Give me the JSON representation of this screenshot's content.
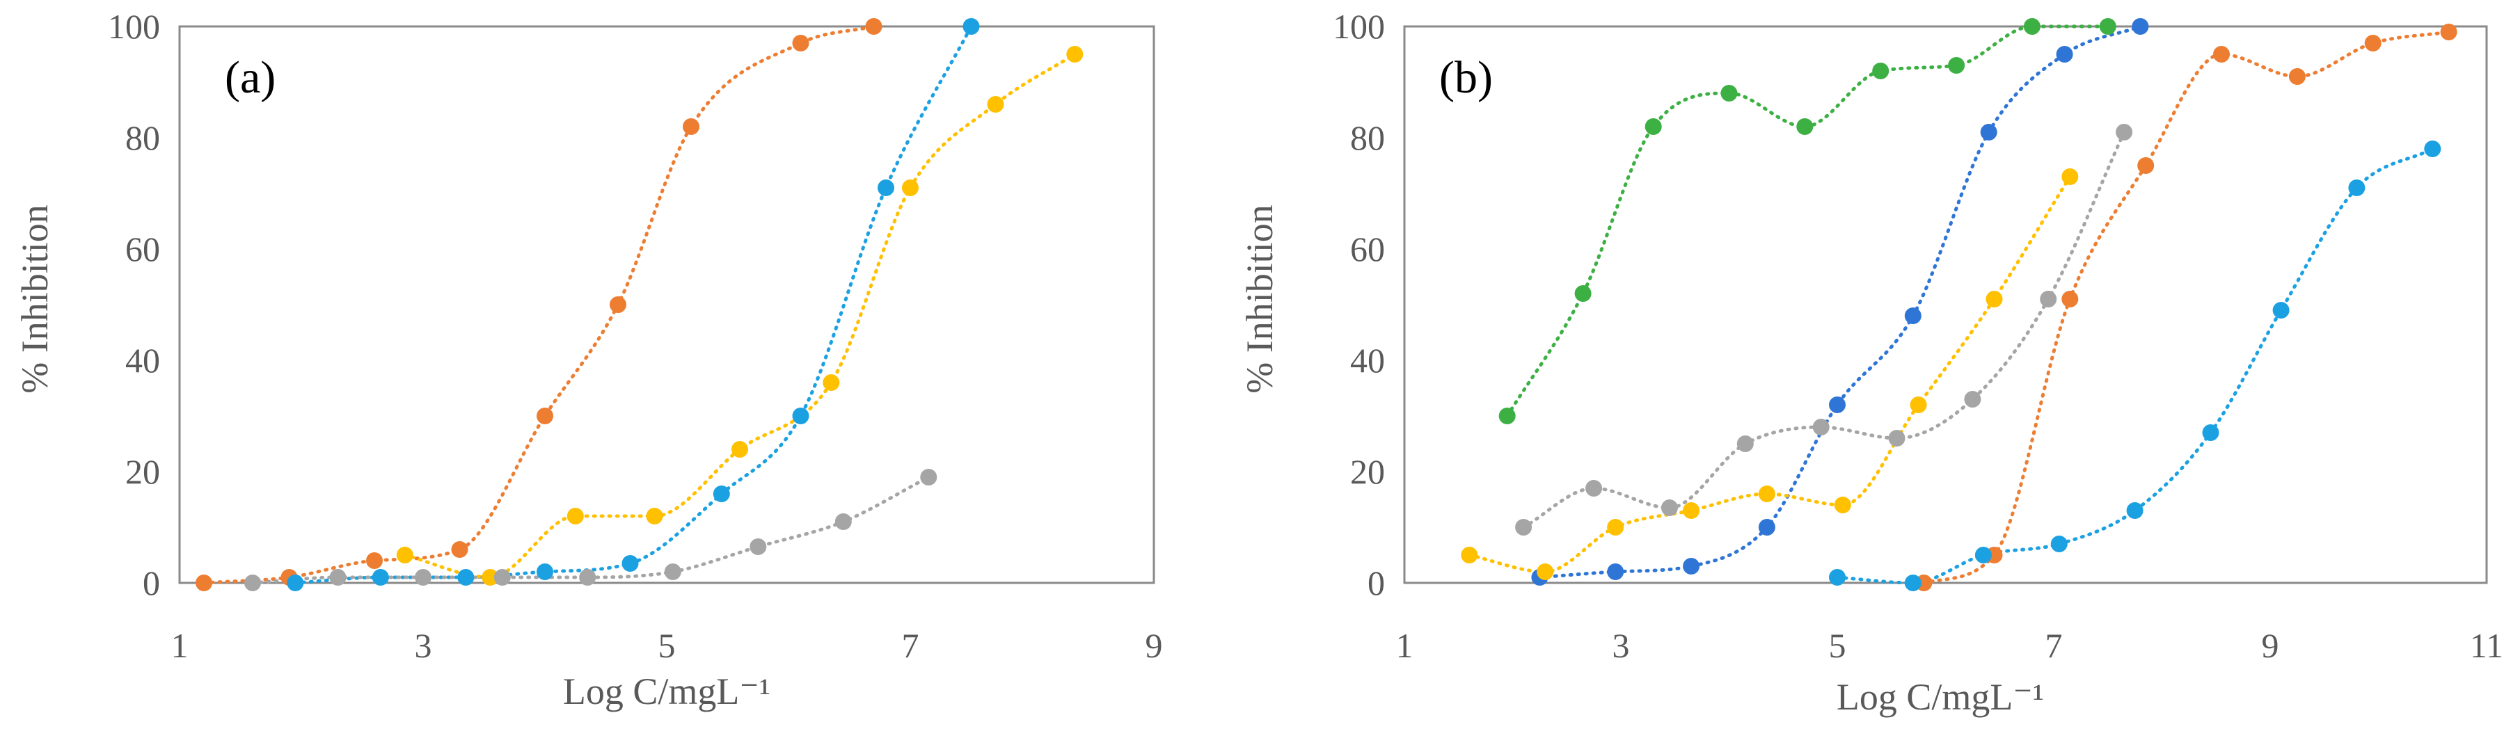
{
  "chart_data": [
    {
      "type": "scatter",
      "panel_label": "(a)",
      "xlabel": "Log C/mgL⁻¹",
      "ylabel": "% Inhibition",
      "xlim": [
        1,
        9
      ],
      "ylim": [
        0,
        100
      ],
      "xticks": [
        1,
        3,
        5,
        7,
        9
      ],
      "yticks": [
        0,
        20,
        40,
        60,
        80,
        100
      ],
      "grid": false,
      "legend": "none",
      "series": [
        {
          "name": "orange",
          "color": "#ED7D31",
          "x": [
            1.2,
            1.9,
            2.6,
            3.3,
            4.0,
            4.6,
            5.2,
            6.1,
            6.7
          ],
          "y": [
            0,
            1,
            4,
            6,
            30,
            50,
            82,
            97,
            100
          ]
        },
        {
          "name": "light-blue",
          "color": "#1BA1E2",
          "x": [
            1.95,
            2.65,
            3.35,
            4.0,
            4.7,
            5.45,
            6.1,
            6.8,
            7.5
          ],
          "y": [
            0,
            1,
            1,
            2,
            3.5,
            16,
            30,
            71,
            100
          ]
        },
        {
          "name": "yellow",
          "color": "#FFC000",
          "x": [
            2.85,
            3.55,
            4.25,
            4.9,
            5.6,
            6.35,
            7.0,
            7.7,
            8.35
          ],
          "y": [
            5,
            1,
            12,
            12,
            24,
            36,
            71,
            86,
            95
          ]
        },
        {
          "name": "gray",
          "color": "#A5A5A5",
          "x": [
            1.6,
            2.3,
            3.0,
            3.65,
            4.35,
            5.05,
            5.75,
            6.45,
            7.15
          ],
          "y": [
            0,
            1,
            1,
            1,
            1,
            2,
            6.5,
            11,
            19
          ]
        }
      ]
    },
    {
      "type": "scatter",
      "panel_label": "(b)",
      "xlabel": "Log C/mgL⁻¹",
      "ylabel": "% Inhibition",
      "xlim": [
        1,
        11
      ],
      "ylim": [
        0,
        100
      ],
      "xticks": [
        1,
        3,
        5,
        7,
        9,
        11
      ],
      "yticks": [
        0,
        20,
        40,
        60,
        80,
        100
      ],
      "grid": false,
      "legend": "none",
      "series": [
        {
          "name": "green",
          "color": "#3CB043",
          "x": [
            1.95,
            2.65,
            3.3,
            4.0,
            4.7,
            5.4,
            6.1,
            6.8,
            7.5
          ],
          "y": [
            30,
            52,
            82,
            88,
            82,
            92,
            93,
            100,
            100
          ]
        },
        {
          "name": "dark-blue",
          "color": "#2E75D6",
          "x": [
            2.25,
            2.95,
            3.65,
            4.35,
            5.0,
            5.7,
            6.4,
            7.1,
            7.8
          ],
          "y": [
            1,
            2,
            3,
            10,
            32,
            48,
            81,
            95,
            100
          ]
        },
        {
          "name": "yellow",
          "color": "#FFC000",
          "x": [
            1.6,
            2.3,
            2.95,
            3.65,
            4.35,
            5.05,
            5.75,
            6.45,
            7.15
          ],
          "y": [
            5,
            2,
            10,
            13,
            16,
            14,
            32,
            51,
            73
          ]
        },
        {
          "name": "gray",
          "color": "#A5A5A5",
          "x": [
            2.1,
            2.75,
            3.45,
            4.15,
            4.85,
            5.55,
            6.25,
            6.95,
            7.65
          ],
          "y": [
            10,
            17,
            13.5,
            25,
            28,
            26,
            33,
            51,
            81
          ]
        },
        {
          "name": "orange",
          "color": "#ED7D31",
          "x": [
            5.8,
            6.45,
            7.15,
            7.85,
            8.55,
            9.25,
            9.95,
            10.65
          ],
          "y": [
            0,
            5,
            51,
            75,
            95,
            91,
            97,
            99
          ]
        },
        {
          "name": "light-blue",
          "color": "#1BA1E2",
          "x": [
            5.0,
            5.7,
            6.35,
            7.05,
            7.75,
            8.45,
            9.1,
            9.8,
            10.5
          ],
          "y": [
            1,
            0,
            5,
            7,
            13,
            27,
            49,
            71,
            78
          ]
        }
      ]
    }
  ]
}
